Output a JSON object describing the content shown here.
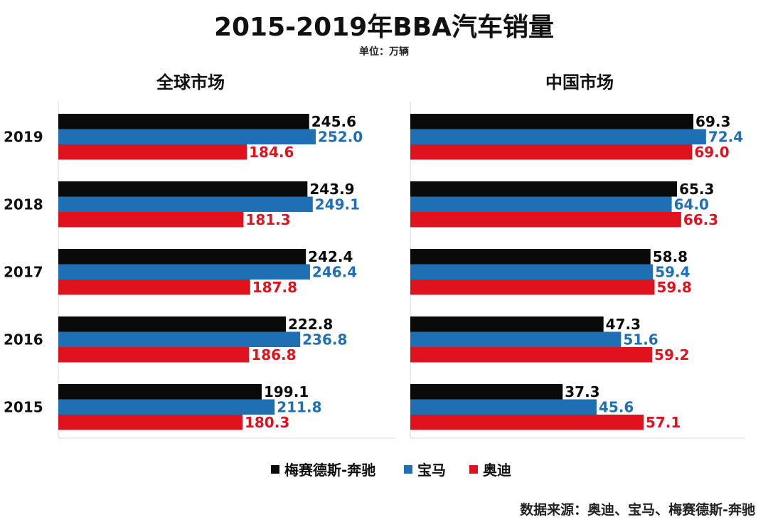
{
  "chart_data": {
    "type": "bar",
    "orientation": "horizontal",
    "title": "2015-2019年BBA汽车销量",
    "subtitle": "单位：万辆",
    "categories": [
      "2019",
      "2018",
      "2017",
      "2016",
      "2015"
    ],
    "colors": [
      "#0a0a0a",
      "#1f6fb5",
      "#e0121d"
    ],
    "legend_position": "bottom",
    "source": "数据来源：奥迪、宝马、梅赛德斯-奔驰",
    "panels": [
      {
        "title": "全球市场",
        "xlim": [
          0,
          330
        ],
        "series": [
          {
            "name": "梅赛德斯-奔驰",
            "values": [
              245.6,
              243.9,
              242.4,
              222.8,
              199.1
            ],
            "labels": [
              "245.6",
              "243.9",
              "242.4",
              "222.8",
              "199.1"
            ]
          },
          {
            "name": "宝马",
            "values": [
              252.0,
              249.1,
              246.4,
              236.8,
              211.8
            ],
            "labels": [
              "252.0",
              "249.1",
              "246.4",
              "236.8",
              "211.8"
            ]
          },
          {
            "name": "奥迪",
            "values": [
              184.6,
              181.3,
              187.8,
              186.8,
              180.3
            ],
            "labels": [
              "184.6",
              "181.3",
              "187.8",
              "186.8",
              "180.3"
            ]
          }
        ]
      },
      {
        "title": "中国市场",
        "xlim": [
          0,
          82
        ],
        "series": [
          {
            "name": "梅赛德斯-奔驰",
            "values": [
              69.3,
              65.3,
              58.8,
              47.3,
              37.3
            ],
            "labels": [
              "69.3",
              "65.3",
              "58.8",
              "47.3",
              "37.3"
            ]
          },
          {
            "name": "宝马",
            "values": [
              72.4,
              64.0,
              59.4,
              51.6,
              45.6
            ],
            "labels": [
              "72.4",
              "64.0",
              "59.4",
              "51.6",
              "45.6"
            ]
          },
          {
            "name": "奥迪",
            "values": [
              69.0,
              66.3,
              59.8,
              59.2,
              57.1
            ],
            "labels": [
              "69.0",
              "66.3",
              "59.8",
              "59.2",
              "57.1"
            ]
          }
        ]
      }
    ]
  }
}
